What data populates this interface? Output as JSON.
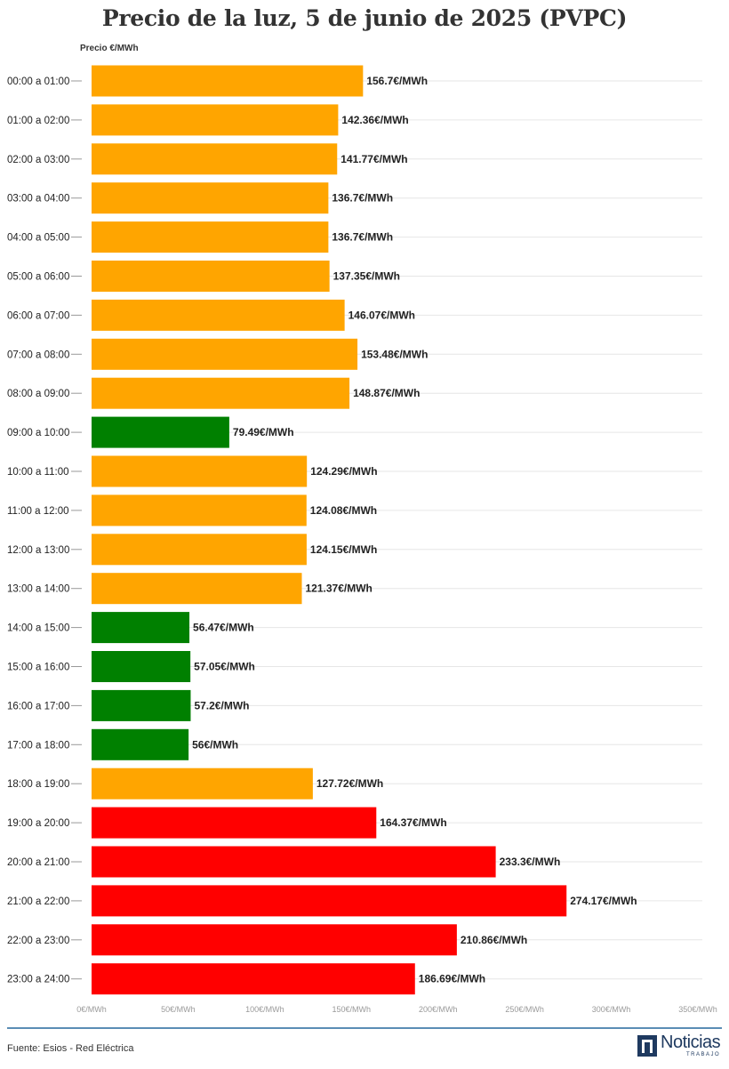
{
  "title": "Precio de la luz, 5 de junio de 2025 (PVPC)",
  "source": "Fuente: Esios - Red Eléctrica",
  "logo": {
    "main": "Noticias",
    "sub": "TRABAJO"
  },
  "colors": {
    "low": "#008000",
    "mid": "#FFA500",
    "high": "#FF0000",
    "grid": "#e6e6e6",
    "axis": "#999999"
  },
  "chart_data": {
    "type": "bar",
    "orientation": "horizontal",
    "title": "Precio de la luz, 5 de junio de 2025 (PVPC)",
    "xlabel": "",
    "ylabel": "Precio €/MWh",
    "xlim": [
      0,
      350
    ],
    "x_ticks": [
      0,
      50,
      100,
      150,
      200,
      250,
      300,
      350
    ],
    "x_tick_labels": [
      "0€/MWh",
      "50€/MWh",
      "100€/MWh",
      "150€/MWh",
      "200€/MWh",
      "250€/MWh",
      "300€/MWh",
      "350€/MWh"
    ],
    "grid": true,
    "categories": [
      "00:00 a 01:00",
      "01:00 a 02:00",
      "02:00 a 03:00",
      "03:00 a 04:00",
      "04:00 a 05:00",
      "05:00 a 06:00",
      "06:00 a 07:00",
      "07:00 a 08:00",
      "08:00 a 09:00",
      "09:00 a 10:00",
      "10:00 a 11:00",
      "11:00 a 12:00",
      "12:00 a 13:00",
      "13:00 a 14:00",
      "14:00 a 15:00",
      "15:00 a 16:00",
      "16:00 a 17:00",
      "17:00 a 18:00",
      "18:00 a 19:00",
      "19:00 a 20:00",
      "20:00 a 21:00",
      "21:00 a 22:00",
      "22:00 a 23:00",
      "23:00 a 24:00"
    ],
    "values": [
      156.7,
      142.36,
      141.77,
      136.7,
      136.7,
      137.35,
      146.07,
      153.48,
      148.87,
      79.49,
      124.29,
      124.08,
      124.15,
      121.37,
      56.47,
      57.05,
      57.2,
      56,
      127.72,
      164.37,
      233.3,
      274.17,
      210.86,
      186.69
    ],
    "value_labels": [
      "156.7€/MWh",
      "142.36€/MWh",
      "141.77€/MWh",
      "136.7€/MWh",
      "136.7€/MWh",
      "137.35€/MWh",
      "146.07€/MWh",
      "153.48€/MWh",
      "148.87€/MWh",
      "79.49€/MWh",
      "124.29€/MWh",
      "124.08€/MWh",
      "124.15€/MWh",
      "121.37€/MWh",
      "56.47€/MWh",
      "57.05€/MWh",
      "57.2€/MWh",
      "56€/MWh",
      "127.72€/MWh",
      "164.37€/MWh",
      "233.3€/MWh",
      "274.17€/MWh",
      "210.86€/MWh",
      "186.69€/MWh"
    ],
    "bar_levels": [
      "mid",
      "mid",
      "mid",
      "mid",
      "mid",
      "mid",
      "mid",
      "mid",
      "mid",
      "low",
      "mid",
      "mid",
      "mid",
      "mid",
      "low",
      "low",
      "low",
      "low",
      "mid",
      "high",
      "high",
      "high",
      "high",
      "high"
    ]
  }
}
